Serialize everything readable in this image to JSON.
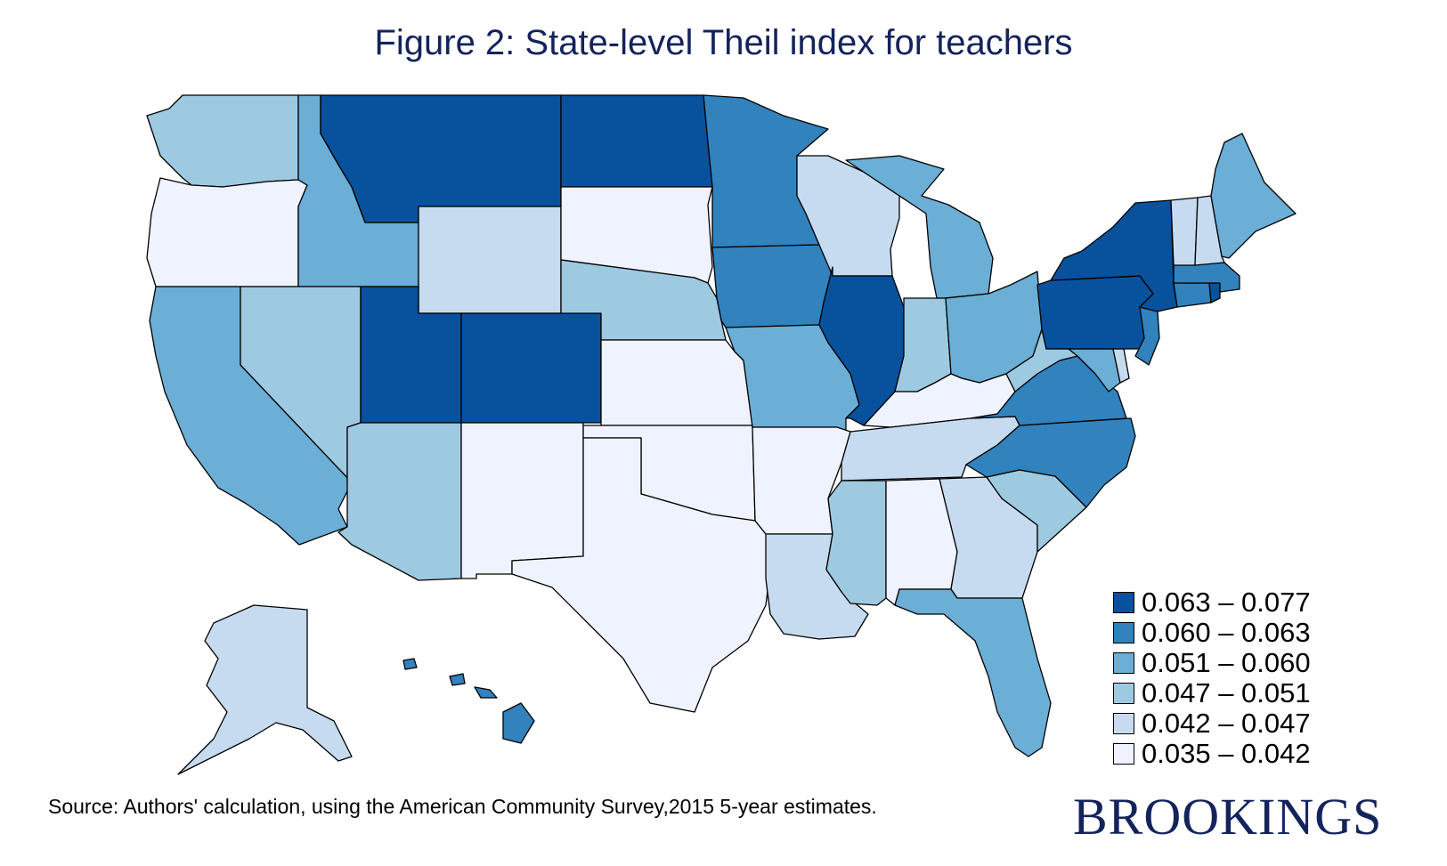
{
  "title": "Figure 2: State-level Theil index for teachers",
  "source": "Source: Authors' calculation, using the American Community Survey,2015 5-year estimates.",
  "logo": "BROOKINGS",
  "colors": {
    "c6": "#08519c",
    "c5": "#3182bd",
    "c4": "#6baed6",
    "c3": "#9ecae1",
    "c2": "#c6dbef",
    "c1": "#eff3ff",
    "title": "#14235c"
  },
  "legend": [
    {
      "label": "0.063 – 0.077",
      "class": "c6"
    },
    {
      "label": "0.060 – 0.063",
      "class": "c5"
    },
    {
      "label": "0.051 – 0.060",
      "class": "c4"
    },
    {
      "label": "0.047 – 0.051",
      "class": "c3"
    },
    {
      "label": "0.042 – 0.047",
      "class": "c2"
    },
    {
      "label": "0.035 – 0.042",
      "class": "c1"
    }
  ],
  "states": [
    {
      "name": "WA",
      "class": "c3"
    },
    {
      "name": "OR",
      "class": "c1"
    },
    {
      "name": "CA",
      "class": "c4"
    },
    {
      "name": "ID",
      "class": "c4"
    },
    {
      "name": "NV",
      "class": "c3"
    },
    {
      "name": "MT",
      "class": "c6"
    },
    {
      "name": "WY",
      "class": "c2"
    },
    {
      "name": "UT",
      "class": "c6"
    },
    {
      "name": "AZ",
      "class": "c3"
    },
    {
      "name": "CO",
      "class": "c6"
    },
    {
      "name": "NM",
      "class": "c1"
    },
    {
      "name": "ND",
      "class": "c6"
    },
    {
      "name": "SD",
      "class": "c1"
    },
    {
      "name": "NE",
      "class": "c3"
    },
    {
      "name": "KS",
      "class": "c1"
    },
    {
      "name": "OK",
      "class": "c1"
    },
    {
      "name": "TX",
      "class": "c1"
    },
    {
      "name": "MN",
      "class": "c5"
    },
    {
      "name": "IA",
      "class": "c5"
    },
    {
      "name": "MO",
      "class": "c4"
    },
    {
      "name": "AR",
      "class": "c1"
    },
    {
      "name": "LA",
      "class": "c2"
    },
    {
      "name": "WI",
      "class": "c2"
    },
    {
      "name": "IL",
      "class": "c6"
    },
    {
      "name": "MI",
      "class": "c4"
    },
    {
      "name": "IN",
      "class": "c3"
    },
    {
      "name": "OH",
      "class": "c4"
    },
    {
      "name": "KY",
      "class": "c1"
    },
    {
      "name": "TN",
      "class": "c2"
    },
    {
      "name": "MS",
      "class": "c3"
    },
    {
      "name": "AL",
      "class": "c1"
    },
    {
      "name": "GA",
      "class": "c2"
    },
    {
      "name": "FL",
      "class": "c4"
    },
    {
      "name": "SC",
      "class": "c3"
    },
    {
      "name": "NC",
      "class": "c5"
    },
    {
      "name": "VA",
      "class": "c5"
    },
    {
      "name": "WV",
      "class": "c3"
    },
    {
      "name": "MD",
      "class": "c4"
    },
    {
      "name": "DE",
      "class": "c2"
    },
    {
      "name": "NJ",
      "class": "c5"
    },
    {
      "name": "PA",
      "class": "c6"
    },
    {
      "name": "NY",
      "class": "c6"
    },
    {
      "name": "CT",
      "class": "c5"
    },
    {
      "name": "RI",
      "class": "c6"
    },
    {
      "name": "MA",
      "class": "c5"
    },
    {
      "name": "VT",
      "class": "c2"
    },
    {
      "name": "NH",
      "class": "c2"
    },
    {
      "name": "ME",
      "class": "c4"
    },
    {
      "name": "AK",
      "class": "c2"
    },
    {
      "name": "HI",
      "class": "c5"
    }
  ]
}
